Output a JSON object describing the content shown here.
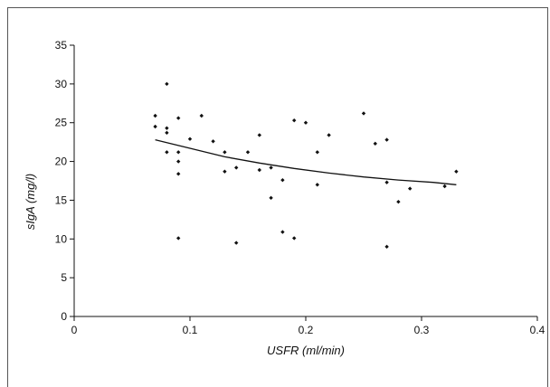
{
  "chart_data": {
    "type": "scatter",
    "xlabel": "USFR (ml/min)",
    "ylabel": "sIgA (mg/l)",
    "xlim": [
      0,
      0.4
    ],
    "ylim": [
      0,
      35
    ],
    "x_ticks": [
      0,
      0.1,
      0.2,
      0.3,
      0.4
    ],
    "x_tick_labels": [
      "0",
      "0.1",
      "0.2",
      "0.3",
      "0.4"
    ],
    "y_ticks": [
      0,
      5,
      10,
      15,
      20,
      25,
      30,
      35
    ],
    "y_tick_labels": [
      "0",
      "5",
      "10",
      "15",
      "20",
      "25",
      "30",
      "35"
    ],
    "grid": false,
    "legend": false,
    "marker_color": "#111111",
    "line_color": "#111111",
    "points": [
      [
        0.07,
        25.9
      ],
      [
        0.07,
        24.5
      ],
      [
        0.08,
        30.0
      ],
      [
        0.08,
        24.3
      ],
      [
        0.08,
        23.7
      ],
      [
        0.08,
        21.2
      ],
      [
        0.09,
        25.6
      ],
      [
        0.09,
        21.2
      ],
      [
        0.09,
        20.0
      ],
      [
        0.09,
        18.4
      ],
      [
        0.09,
        10.1
      ],
      [
        0.1,
        22.9
      ],
      [
        0.11,
        25.9
      ],
      [
        0.12,
        22.6
      ],
      [
        0.13,
        21.2
      ],
      [
        0.13,
        18.7
      ],
      [
        0.14,
        19.2
      ],
      [
        0.14,
        9.5
      ],
      [
        0.15,
        21.2
      ],
      [
        0.16,
        23.4
      ],
      [
        0.16,
        18.9
      ],
      [
        0.17,
        19.2
      ],
      [
        0.17,
        15.3
      ],
      [
        0.18,
        17.6
      ],
      [
        0.18,
        10.9
      ],
      [
        0.19,
        25.3
      ],
      [
        0.19,
        10.1
      ],
      [
        0.2,
        25.0
      ],
      [
        0.21,
        21.2
      ],
      [
        0.21,
        17.0
      ],
      [
        0.22,
        23.4
      ],
      [
        0.25,
        26.2
      ],
      [
        0.26,
        22.3
      ],
      [
        0.27,
        22.8
      ],
      [
        0.27,
        17.3
      ],
      [
        0.27,
        9.0
      ],
      [
        0.28,
        14.8
      ],
      [
        0.29,
        16.5
      ],
      [
        0.32,
        16.8
      ],
      [
        0.33,
        18.7
      ]
    ],
    "trendline": {
      "type": "curve",
      "x": [
        0.07,
        0.1,
        0.13,
        0.16,
        0.19,
        0.22,
        0.25,
        0.28,
        0.31,
        0.33
      ],
      "y": [
        22.8,
        21.7,
        20.6,
        19.8,
        19.1,
        18.5,
        18.0,
        17.6,
        17.3,
        17.0
      ]
    }
  }
}
